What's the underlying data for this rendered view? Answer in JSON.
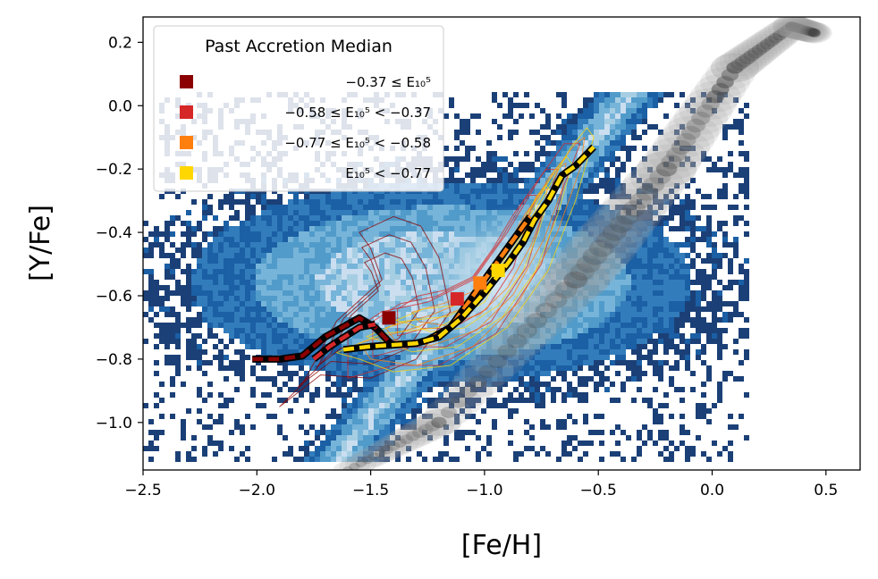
{
  "chart_data": {
    "type": "scatter",
    "title": "",
    "xlabel": "[Fe/H]",
    "ylabel": "[Y/Fe]",
    "xlim": [
      -2.5,
      0.65
    ],
    "ylim": [
      -1.15,
      0.28
    ],
    "xticks": [
      -2.5,
      -2.0,
      -1.5,
      -1.0,
      -0.5,
      0.0,
      0.5
    ],
    "xtick_labels": [
      "−2.5",
      "−2.0",
      "−1.5",
      "−1.0",
      "−0.5",
      "0.0",
      "0.5"
    ],
    "yticks": [
      -1.0,
      -0.8,
      -0.6,
      -0.4,
      -0.2,
      0.0,
      0.2
    ],
    "ytick_labels": [
      "−1.0",
      "−0.8",
      "−0.6",
      "−0.4",
      "−0.2",
      "0.0",
      "0.2"
    ],
    "grid": false,
    "legend": {
      "title": "Past Accretion Median",
      "location": "top-left",
      "entries": [
        {
          "label": "−0.37 ≤ E₁₀⁵",
          "color": "#8b0000"
        },
        {
          "label": "−0.58 ≤ E₁₀⁵ < −0.37",
          "color": "#d62728"
        },
        {
          "label": "−0.77 ≤ E₁₀⁵ < −0.58",
          "color": "#ff7f0e"
        },
        {
          "label": "E₁₀⁵ < −0.77",
          "color": "#ffd700"
        }
      ]
    },
    "background_density": {
      "accreted_colormap": "Blues",
      "in_situ_colormap": "Greys",
      "in_situ_ridge": [
        [
          -1.6,
          -1.15
        ],
        [
          -1.2,
          -1.0
        ],
        [
          -0.6,
          -0.55
        ],
        [
          -0.2,
          -0.2
        ],
        [
          0.1,
          0.12
        ],
        [
          0.35,
          0.25
        ],
        [
          0.45,
          0.23
        ]
      ]
    },
    "series": [
      {
        "name": "−0.37 ≤ E₁₀⁵",
        "color": "#8b0000",
        "median_x": -1.42,
        "median_y": -0.67,
        "line": [
          [
            -2.02,
            -0.8
          ],
          [
            -1.9,
            -0.8
          ],
          [
            -1.8,
            -0.79
          ],
          [
            -1.7,
            -0.73
          ],
          [
            -1.6,
            -0.69
          ],
          [
            -1.55,
            -0.67
          ],
          [
            -1.48,
            -0.7
          ],
          [
            -1.4,
            -0.76
          ]
        ]
      },
      {
        "name": "−0.58 ≤ E₁₀⁵ < −0.37",
        "color": "#d62728",
        "median_x": -1.12,
        "median_y": -0.61,
        "line": [
          [
            -1.75,
            -0.8
          ],
          [
            -1.68,
            -0.76
          ],
          [
            -1.55,
            -0.7
          ],
          [
            -1.48,
            -0.69
          ]
        ]
      },
      {
        "name": "−0.77 ≤ E₁₀⁵ < −0.58",
        "color": "#ff7f0e",
        "median_x": -1.02,
        "median_y": -0.56,
        "line": [
          [
            -1.25,
            -0.74
          ],
          [
            -1.15,
            -0.7
          ],
          [
            -1.05,
            -0.6
          ],
          [
            -0.95,
            -0.5
          ],
          [
            -0.85,
            -0.4
          ],
          [
            -0.8,
            -0.35
          ]
        ]
      },
      {
        "name": "E₁₀⁵ < −0.77",
        "color": "#ffd700",
        "median_x": -0.94,
        "median_y": -0.52,
        "line": [
          [
            -1.62,
            -0.77
          ],
          [
            -1.5,
            -0.76
          ],
          [
            -1.4,
            -0.755
          ],
          [
            -1.3,
            -0.75
          ],
          [
            -1.2,
            -0.73
          ],
          [
            -1.1,
            -0.67
          ],
          [
            -1.0,
            -0.59
          ],
          [
            -0.9,
            -0.5
          ],
          [
            -0.83,
            -0.43
          ],
          [
            -0.78,
            -0.36
          ],
          [
            -0.72,
            -0.3
          ],
          [
            -0.66,
            -0.22
          ],
          [
            -0.6,
            -0.19
          ],
          [
            -0.56,
            -0.16
          ],
          [
            -0.52,
            -0.13
          ]
        ]
      }
    ]
  }
}
